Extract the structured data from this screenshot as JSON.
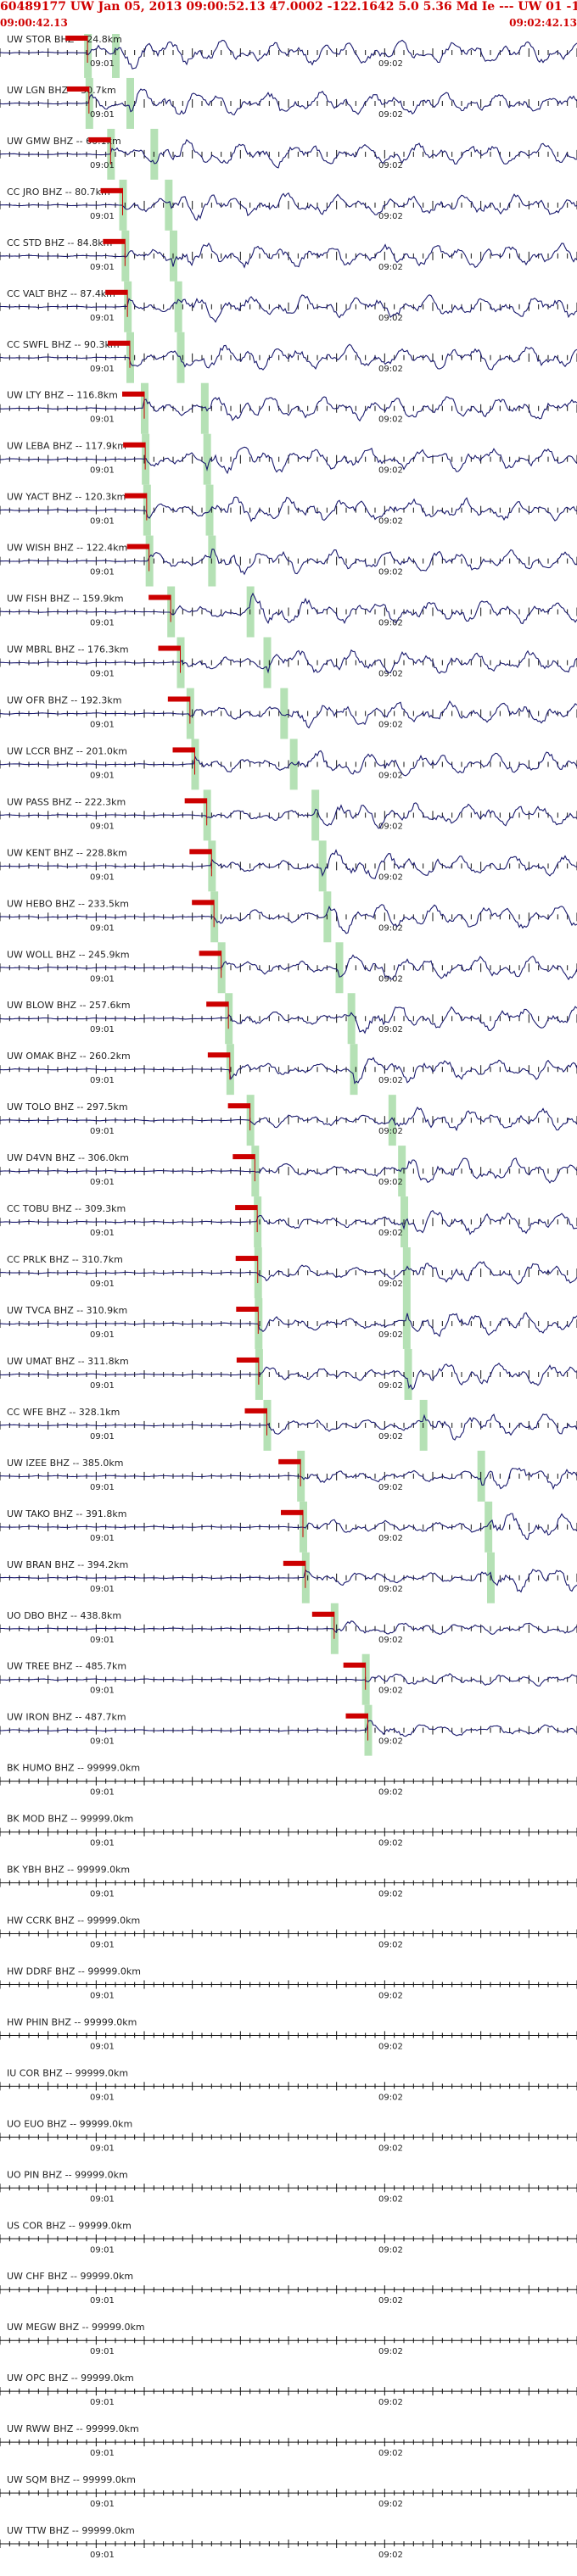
{
  "header": {
    "title": "60489177 UW Jan 05, 2013 09:00:52.13    47.0002  -122.1642   5.0 5.36 Md Ie --- UW 01   -1",
    "start_time": "09:00:42.13",
    "end_time": "09:02:42.13"
  },
  "chart_data": {
    "type": "line",
    "title": "60489177 UW Jan 05, 2013 09:00:52.13    47.0002  -122.1642   5.0 5.36 Md Ie --- UW 01   -1",
    "x_range": [
      "09:00:42.13",
      "09:02:42.13"
    ],
    "x_unit": "s",
    "x_range_seconds": [
      0,
      120
    ],
    "origin_time": "09:00:52.13",
    "minute_labels": [
      "09:01",
      "09:02"
    ],
    "grid": false,
    "colors": {
      "trace": "#1a1a6e",
      "pick": "#cc0000",
      "arrival_band": "#a8dca8",
      "title": "#d00000"
    },
    "traces": [
      {
        "label": "UW STOR BHZ -- 24.8km",
        "has_data": true,
        "p_pick": 18.2,
        "s_pick": 24.0
      },
      {
        "label": "UW LGN BHZ -- 30.7km",
        "has_data": true,
        "p_pick": 18.5,
        "s_pick": 27.0
      },
      {
        "label": "UW GMW BHZ -- 60.1km",
        "has_data": true,
        "p_pick": 23.0,
        "s_pick": 32.0
      },
      {
        "label": "CC JRO BHZ -- 80.7km",
        "has_data": true,
        "p_pick": 25.5,
        "s_pick": 35.0
      },
      {
        "label": "CC STD BHZ -- 84.8km",
        "has_data": true,
        "p_pick": 26.0,
        "s_pick": 36.0
      },
      {
        "label": "CC VALT BHZ -- 87.4km",
        "has_data": true,
        "p_pick": 26.5,
        "s_pick": 37.0
      },
      {
        "label": "CC SWFL BHZ -- 90.3km",
        "has_data": true,
        "p_pick": 27.0,
        "s_pick": 37.5
      },
      {
        "label": "UW LTY BHZ -- 116.8km",
        "has_data": true,
        "p_pick": 30.0,
        "s_pick": 42.5
      },
      {
        "label": "UW LEBA BHZ -- 117.9km",
        "has_data": true,
        "p_pick": 30.2,
        "s_pick": 43.0
      },
      {
        "label": "UW YACT BHZ -- 120.3km",
        "has_data": true,
        "p_pick": 30.5,
        "s_pick": 43.5
      },
      {
        "label": "UW WISH BHZ -- 122.4km",
        "has_data": true,
        "p_pick": 31.0,
        "s_pick": 44.0
      },
      {
        "label": "UW FISH BHZ -- 159.9km",
        "has_data": true,
        "p_pick": 35.5,
        "s_pick": 52.0
      },
      {
        "label": "UW MBRL BHZ -- 176.3km",
        "has_data": true,
        "p_pick": 37.5,
        "s_pick": 55.5
      },
      {
        "label": "UW OFR BHZ -- 192.3km",
        "has_data": true,
        "p_pick": 39.5,
        "s_pick": 59.0
      },
      {
        "label": "UW LCCR BHZ -- 201.0km",
        "has_data": true,
        "p_pick": 40.5,
        "s_pick": 61.0
      },
      {
        "label": "UW PASS BHZ -- 222.3km",
        "has_data": true,
        "p_pick": 43.0,
        "s_pick": 65.5
      },
      {
        "label": "UW KENT BHZ -- 228.8km",
        "has_data": true,
        "p_pick": 44.0,
        "s_pick": 67.0
      },
      {
        "label": "UW HEBO BHZ -- 233.5km",
        "has_data": true,
        "p_pick": 44.5,
        "s_pick": 68.0
      },
      {
        "label": "UW WOLL BHZ -- 245.9km",
        "has_data": true,
        "p_pick": 46.0,
        "s_pick": 70.5
      },
      {
        "label": "UW BLOW BHZ -- 257.6km",
        "has_data": true,
        "p_pick": 47.5,
        "s_pick": 73.0
      },
      {
        "label": "UW OMAK BHZ -- 260.2km",
        "has_data": true,
        "p_pick": 47.8,
        "s_pick": 73.5
      },
      {
        "label": "UW TOLO BHZ -- 297.5km",
        "has_data": true,
        "p_pick": 52.0,
        "s_pick": 81.5
      },
      {
        "label": "UW D4VN BHZ -- 306.0km",
        "has_data": true,
        "p_pick": 53.0,
        "s_pick": 83.5
      },
      {
        "label": "CC TOBU BHZ -- 309.3km",
        "has_data": true,
        "p_pick": 53.5,
        "s_pick": 84.0
      },
      {
        "label": "CC PRLK BHZ -- 310.7km",
        "has_data": true,
        "p_pick": 53.6,
        "s_pick": 84.5
      },
      {
        "label": "UW TVCA BHZ -- 310.9km",
        "has_data": true,
        "p_pick": 53.7,
        "s_pick": 84.5
      },
      {
        "label": "UW UMAT BHZ -- 311.8km",
        "has_data": true,
        "p_pick": 53.8,
        "s_pick": 84.8
      },
      {
        "label": "CC WFE BHZ -- 328.1km",
        "has_data": true,
        "p_pick": 55.5,
        "s_pick": 88.0
      },
      {
        "label": "UW IZEE BHZ -- 385.0km",
        "has_data": true,
        "p_pick": 62.5,
        "s_pick": 100.0
      },
      {
        "label": "UW TAKO BHZ -- 391.8km",
        "has_data": true,
        "p_pick": 63.0,
        "s_pick": 101.5
      },
      {
        "label": "UW BRAN BHZ -- 394.2km",
        "has_data": true,
        "p_pick": 63.5,
        "s_pick": 102.0
      },
      {
        "label": "UO DBO BHZ -- 438.8km",
        "has_data": true,
        "p_pick": 69.5,
        "s_pick": null
      },
      {
        "label": "UW TREE BHZ -- 485.7km",
        "has_data": true,
        "p_pick": 76.0,
        "s_pick": null
      },
      {
        "label": "UW IRON BHZ -- 487.7km",
        "has_data": true,
        "p_pick": 76.5,
        "s_pick": null
      },
      {
        "label": "BK HUMO BHZ -- 99999.0km",
        "has_data": false
      },
      {
        "label": "BK MOD BHZ -- 99999.0km",
        "has_data": false
      },
      {
        "label": "BK YBH BHZ -- 99999.0km",
        "has_data": false
      },
      {
        "label": "HW CCRK BHZ -- 99999.0km",
        "has_data": false
      },
      {
        "label": "HW DDRF BHZ -- 99999.0km",
        "has_data": false
      },
      {
        "label": "HW PHIN BHZ -- 99999.0km",
        "has_data": false
      },
      {
        "label": "IU COR BHZ -- 99999.0km",
        "has_data": false
      },
      {
        "label": "UO EUO BHZ -- 99999.0km",
        "has_data": false
      },
      {
        "label": "UO PIN BHZ -- 99999.0km",
        "has_data": false
      },
      {
        "label": "US COR BHZ -- 99999.0km",
        "has_data": false
      },
      {
        "label": "UW CHF BHZ -- 99999.0km",
        "has_data": false
      },
      {
        "label": "UW MEGW BHZ -- 99999.0km",
        "has_data": false
      },
      {
        "label": "UW OPC BHZ -- 99999.0km",
        "has_data": false
      },
      {
        "label": "UW RWW BHZ -- 99999.0km",
        "has_data": false
      },
      {
        "label": "UW SQM BHZ -- 99999.0km",
        "has_data": false
      },
      {
        "label": "UW TTW BHZ -- 99999.0km",
        "has_data": false
      }
    ]
  }
}
